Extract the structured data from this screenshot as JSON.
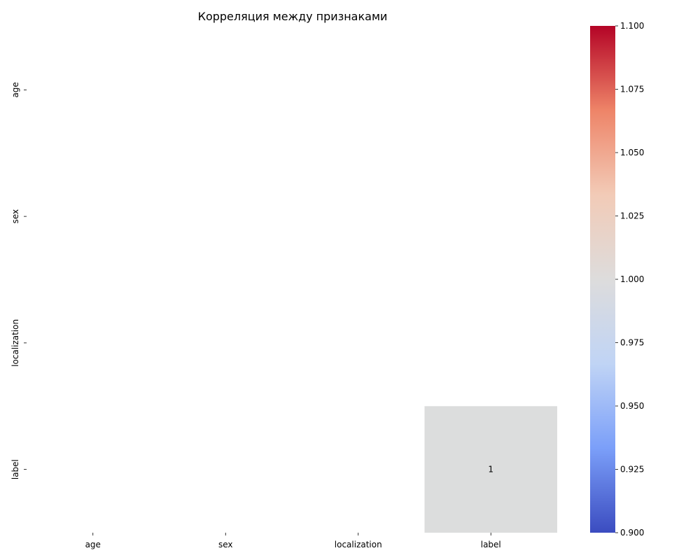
{
  "chart_data": {
    "type": "heatmap",
    "title": "Корреляция между признаками",
    "x_categories": [
      "age",
      "sex",
      "localization",
      "label"
    ],
    "y_categories": [
      "age",
      "sex",
      "localization",
      "label"
    ],
    "values": [
      [
        null,
        null,
        null,
        null
      ],
      [
        null,
        null,
        null,
        null
      ],
      [
        null,
        null,
        null,
        null
      ],
      [
        null,
        null,
        null,
        1
      ]
    ],
    "annotations": [
      [
        "",
        "",
        "",
        ""
      ],
      [
        "",
        "",
        "",
        ""
      ],
      [
        "",
        "",
        "",
        ""
      ],
      [
        "",
        "",
        "",
        "1"
      ]
    ],
    "colormap": "coolwarm",
    "colormap_stops": [
      "#3b4cc0",
      "#7b9ff9",
      "#c0d4f5",
      "#dddcdc",
      "#f2cbb7",
      "#ee8468",
      "#b40426"
    ],
    "colorbar": {
      "vmin": 0.9,
      "vmax": 1.1,
      "ticks": [
        "0.900",
        "0.925",
        "0.950",
        "0.975",
        "1.000",
        "1.025",
        "1.050",
        "1.075",
        "1.100"
      ]
    },
    "cell_color_at_one": "#dcdddd"
  }
}
